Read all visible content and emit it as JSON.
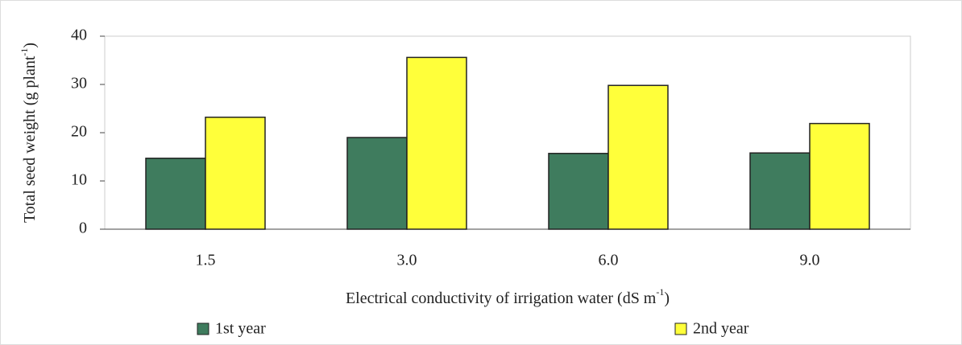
{
  "chart_data": {
    "type": "bar",
    "ylabel": "Total seed weight (g plant",
    "ylabel_sup": "-1",
    "ylabel_end": ")",
    "xlabel": "Electrical conductivity of irrigation water (dS m",
    "xlabel_sup": "-1",
    "xlabel_end": ")",
    "categories": [
      "1.5",
      "3.0",
      "6.0",
      "9.0"
    ],
    "series": [
      {
        "name": "1st year",
        "color": "#3f7c5e",
        "values": [
          14.7,
          19,
          15.7,
          15.8
        ]
      },
      {
        "name": "2nd year",
        "color": "#ffff3a",
        "values": [
          23.2,
          35.6,
          29.8,
          21.9
        ]
      }
    ],
    "ylim": [
      0,
      40
    ],
    "yticks": [
      0,
      10,
      20,
      30,
      40
    ],
    "grid": false
  }
}
